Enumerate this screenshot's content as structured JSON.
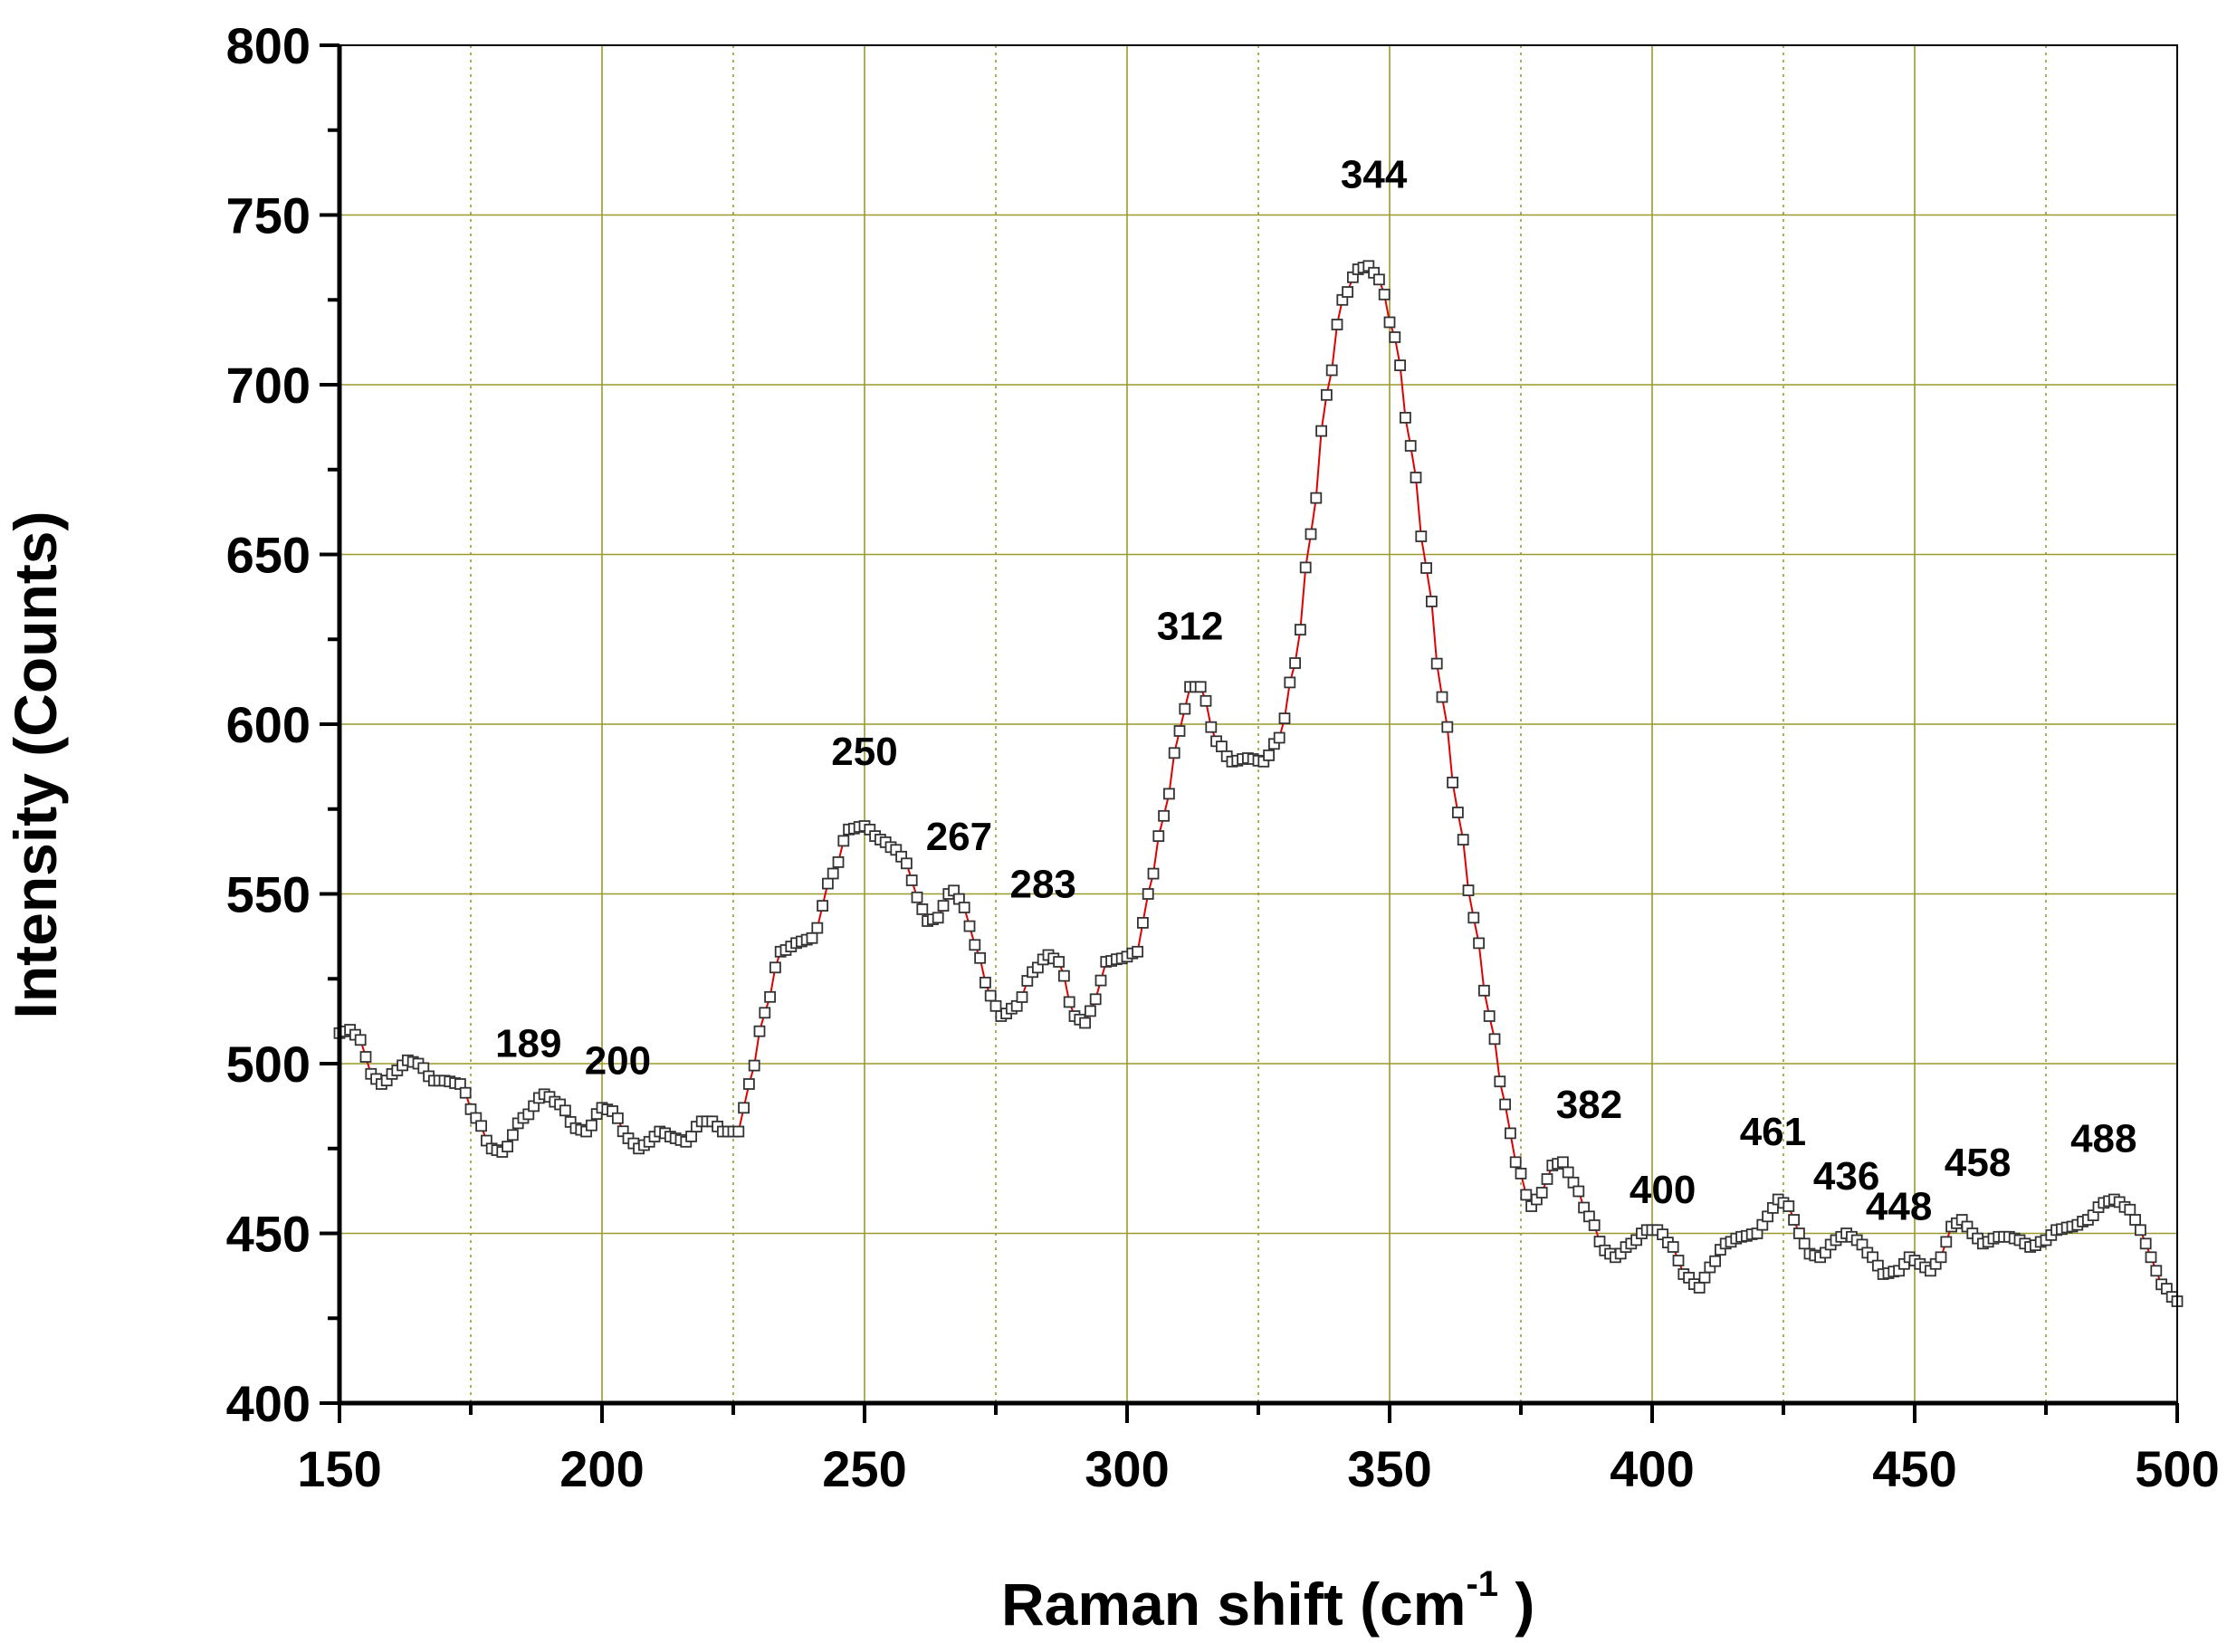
{
  "chart_data": {
    "type": "scatter",
    "xlabel": "Raman shift (cm",
    "xlabel_sup": "-1",
    "xlabel_end": " )",
    "ylabel": "Intensity (Counts)",
    "xlim": [
      150,
      500
    ],
    "ylim": [
      400,
      800
    ],
    "x_ticks": [
      "150",
      "200",
      "250",
      "300",
      "350",
      "400",
      "450",
      "500"
    ],
    "y_ticks": [
      "400",
      "450",
      "500",
      "550",
      "600",
      "650",
      "700",
      "750",
      "800"
    ],
    "grid": true,
    "grid_color": "#9a9a2a",
    "marker": "open-square",
    "marker_color": "#333333",
    "line_color": "#e00000",
    "x_step": 1.0,
    "keypoints": [
      [
        150,
        509
      ],
      [
        152,
        510
      ],
      [
        154,
        507
      ],
      [
        156,
        497
      ],
      [
        158,
        494
      ],
      [
        161,
        498
      ],
      [
        163,
        501
      ],
      [
        165,
        500
      ],
      [
        168,
        495
      ],
      [
        170,
        495
      ],
      [
        173,
        494
      ],
      [
        176,
        484
      ],
      [
        179,
        475
      ],
      [
        181,
        474
      ],
      [
        185,
        484
      ],
      [
        189,
        491
      ],
      [
        192,
        488
      ],
      [
        195,
        481
      ],
      [
        197,
        480
      ],
      [
        200,
        487
      ],
      [
        202,
        486
      ],
      [
        205,
        478
      ],
      [
        207,
        475
      ],
      [
        209,
        477
      ],
      [
        211,
        480
      ],
      [
        214,
        478
      ],
      [
        216,
        477
      ],
      [
        219,
        483
      ],
      [
        221,
        483
      ],
      [
        223,
        480
      ],
      [
        226,
        480
      ],
      [
        228,
        494
      ],
      [
        231,
        515
      ],
      [
        234,
        533
      ],
      [
        238,
        536
      ],
      [
        240,
        537
      ],
      [
        244,
        556
      ],
      [
        247,
        569
      ],
      [
        250,
        570
      ],
      [
        253,
        566
      ],
      [
        256,
        563
      ],
      [
        258,
        559
      ],
      [
        260,
        549
      ],
      [
        262,
        542
      ],
      [
        264,
        543
      ],
      [
        266,
        550
      ],
      [
        267,
        551
      ],
      [
        269,
        546
      ],
      [
        271,
        535
      ],
      [
        274,
        520
      ],
      [
        276,
        514
      ],
      [
        279,
        517
      ],
      [
        282,
        527
      ],
      [
        285,
        532
      ],
      [
        287,
        530
      ],
      [
        290,
        514
      ],
      [
        292,
        512
      ],
      [
        294,
        519
      ],
      [
        296,
        530
      ],
      [
        299,
        531
      ],
      [
        302,
        533
      ],
      [
        304,
        550
      ],
      [
        307,
        573
      ],
      [
        310,
        598
      ],
      [
        312,
        611
      ],
      [
        314,
        611
      ],
      [
        317,
        595
      ],
      [
        320,
        589
      ],
      [
        323,
        590
      ],
      [
        326,
        589
      ],
      [
        329,
        596
      ],
      [
        332,
        618
      ],
      [
        335,
        656
      ],
      [
        338,
        697
      ],
      [
        341,
        725
      ],
      [
        344,
        734
      ],
      [
        346,
        735
      ],
      [
        348,
        731
      ],
      [
        351,
        714
      ],
      [
        354,
        682
      ],
      [
        357,
        646
      ],
      [
        360,
        608
      ],
      [
        363,
        574
      ],
      [
        366,
        543
      ],
      [
        369,
        514
      ],
      [
        372,
        488
      ],
      [
        374,
        471
      ],
      [
        377,
        458
      ],
      [
        379,
        462
      ],
      [
        381,
        470
      ],
      [
        383,
        471
      ],
      [
        385,
        465
      ],
      [
        388,
        455
      ],
      [
        391,
        445
      ],
      [
        393,
        443
      ],
      [
        396,
        447
      ],
      [
        399,
        451
      ],
      [
        401,
        451
      ],
      [
        404,
        446
      ],
      [
        406,
        438
      ],
      [
        409,
        434
      ],
      [
        411,
        440
      ],
      [
        414,
        447
      ],
      [
        417,
        449
      ],
      [
        420,
        450
      ],
      [
        422,
        455
      ],
      [
        424,
        460
      ],
      [
        426,
        458
      ],
      [
        428,
        450
      ],
      [
        430,
        444
      ],
      [
        432,
        443
      ],
      [
        435,
        448
      ],
      [
        437,
        450
      ],
      [
        439,
        448
      ],
      [
        442,
        443
      ],
      [
        444,
        438
      ],
      [
        447,
        439
      ],
      [
        449,
        443
      ],
      [
        451,
        441
      ],
      [
        453,
        439
      ],
      [
        455,
        443
      ],
      [
        457,
        452
      ],
      [
        459,
        454
      ],
      [
        461,
        450
      ],
      [
        463,
        447
      ],
      [
        466,
        449
      ],
      [
        468,
        449
      ],
      [
        470,
        448
      ],
      [
        472,
        446
      ],
      [
        475,
        448
      ],
      [
        477,
        451
      ],
      [
        480,
        452
      ],
      [
        483,
        454
      ],
      [
        486,
        459
      ],
      [
        488,
        460
      ],
      [
        491,
        457
      ],
      [
        493,
        451
      ],
      [
        495,
        443
      ],
      [
        497,
        435
      ],
      [
        500,
        430
      ]
    ],
    "annotations": [
      {
        "text": "189",
        "x": 186,
        "y": 502
      },
      {
        "text": "200",
        "x": 203,
        "y": 497
      },
      {
        "text": "250",
        "x": 250,
        "y": 588
      },
      {
        "text": "267",
        "x": 268,
        "y": 563
      },
      {
        "text": "283",
        "x": 284,
        "y": 549
      },
      {
        "text": "312",
        "x": 312,
        "y": 625
      },
      {
        "text": "344",
        "x": 347,
        "y": 758
      },
      {
        "text": "382",
        "x": 388,
        "y": 484
      },
      {
        "text": "400",
        "x": 402,
        "y": 459
      },
      {
        "text": "461",
        "x": 423,
        "y": 476
      },
      {
        "text": "436",
        "x": 437,
        "y": 463
      },
      {
        "text": "448",
        "x": 447,
        "y": 454
      },
      {
        "text": "458",
        "x": 462,
        "y": 467
      },
      {
        "text": "488",
        "x": 486,
        "y": 474
      }
    ]
  }
}
